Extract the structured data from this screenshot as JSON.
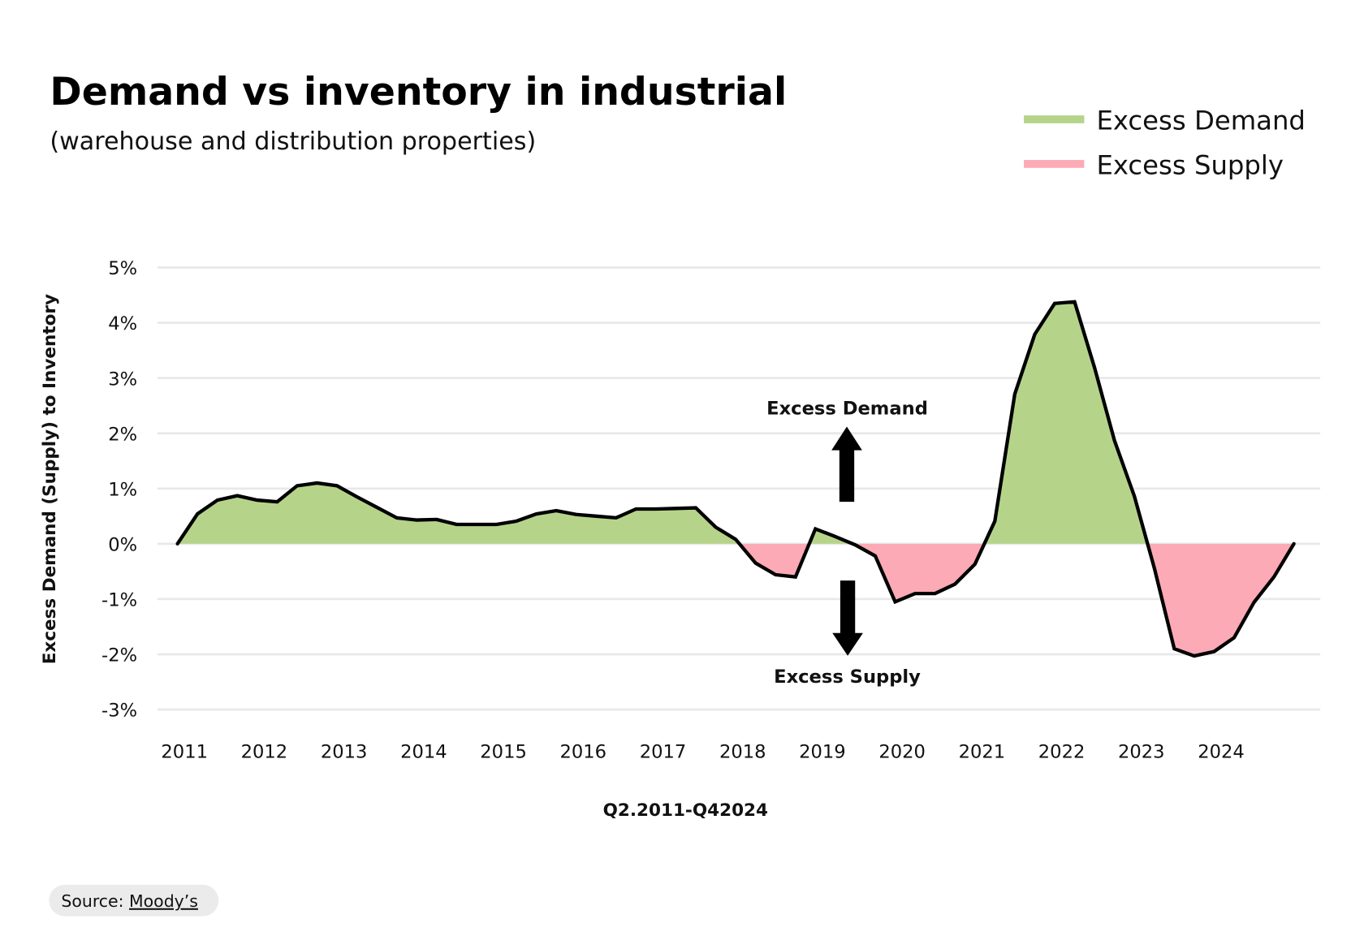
{
  "title": "Demand vs inventory in industrial",
  "subtitle": "(warehouse and distribution properties)",
  "legend": [
    {
      "label": "Excess Demand",
      "color": "#b5d48a"
    },
    {
      "label": "Excess Supply",
      "color": "#fcaab5"
    }
  ],
  "annotations": {
    "up": "Excess Demand",
    "down": "Excess Supply"
  },
  "source": {
    "prefix": "Source: ",
    "link": "Moody’s"
  },
  "chart_data": {
    "type": "area",
    "title": "Demand vs inventory in industrial",
    "subtitle": "(warehouse and distribution properties)",
    "xlabel": "Q2.2011-Q42024",
    "ylabel": "Excess Demand (Supply) to Inventory",
    "ylim": [
      -3,
      5
    ],
    "y_ticks": [
      "5%",
      "4%",
      "3%",
      "2%",
      "1%",
      "0%",
      "-1%",
      "-2%",
      "-3%"
    ],
    "y_tick_values": [
      5,
      4,
      3,
      2,
      1,
      0,
      -1,
      -2,
      -3
    ],
    "x_ticks": [
      "2011",
      "2012",
      "2013",
      "2014",
      "2015",
      "2016",
      "2017",
      "2018",
      "2019",
      "2020",
      "2021",
      "2022",
      "2023",
      "2024"
    ],
    "grid": true,
    "legend_position": "top-right",
    "line_color": "#000000",
    "positive_fill": "#b5d48a",
    "negative_fill": "#fcaab5",
    "values": [
      0,
      0.54,
      0.79,
      0.87,
      0.79,
      0.76,
      1.05,
      1.1,
      1.05,
      0.85,
      0.66,
      0.47,
      0.43,
      0.44,
      0.35,
      0.35,
      0.35,
      0.41,
      0.54,
      0.6,
      0.53,
      0.5,
      0.47,
      0.63,
      0.63,
      0.64,
      0.65,
      0.3,
      0.08,
      -0.35,
      -0.56,
      -0.6,
      0.27,
      0.13,
      -0.02,
      -0.22,
      -1.05,
      -0.9,
      -0.9,
      -0.73,
      -0.37,
      0.41,
      2.71,
      3.79,
      4.35,
      4.38,
      3.19,
      1.87,
      0.86,
      -0.44,
      -1.9,
      -2.03,
      -1.95,
      -1.7,
      -1.06,
      -0.6,
      0
    ]
  }
}
